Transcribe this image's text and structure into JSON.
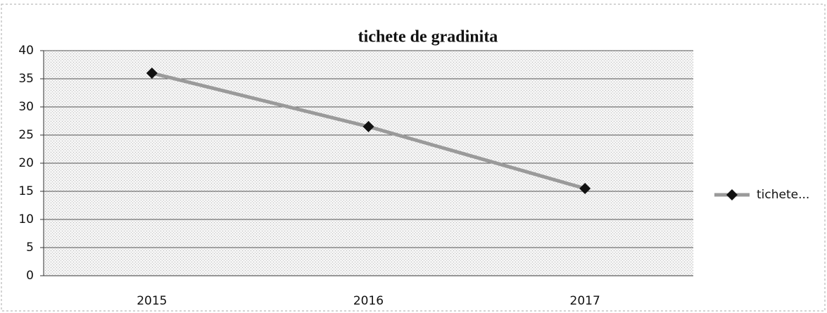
{
  "chart_data": {
    "type": "line",
    "title": "tichete de gradinita",
    "categories": [
      "2015",
      "2016",
      "2017"
    ],
    "series": [
      {
        "name": "tichete...",
        "color": "#9a9a9a",
        "values": [
          36,
          26.5,
          15.5
        ]
      }
    ],
    "ylim": [
      0,
      40
    ],
    "yticks": [
      0,
      5,
      10,
      15,
      20,
      25,
      30,
      35,
      40
    ],
    "grid": true,
    "legend": "right"
  }
}
